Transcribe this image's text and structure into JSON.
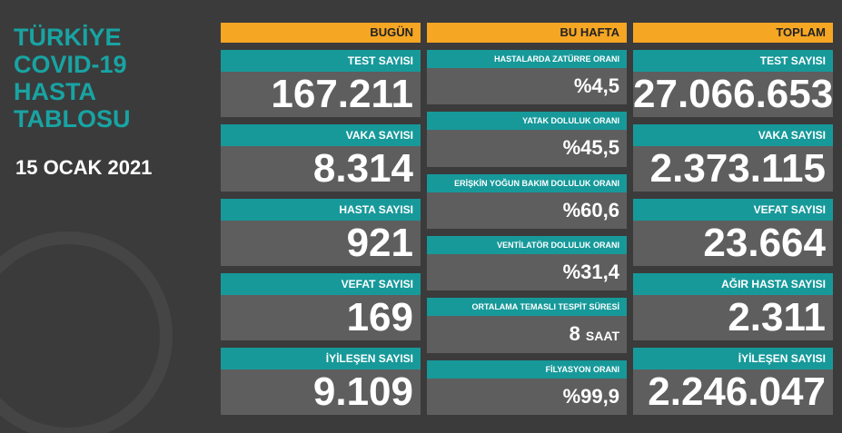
{
  "title_lines": [
    "TÜRKİYE",
    "COVID-19",
    "HASTA",
    "TABLOSU"
  ],
  "date": "15 OCAK 2021",
  "columns": [
    {
      "header": "BUGÜN",
      "items": [
        {
          "label": "TEST SAYISI",
          "value": "167.211"
        },
        {
          "label": "VAKA SAYISI",
          "value": "8.314"
        },
        {
          "label": "HASTA SAYISI",
          "value": "921"
        },
        {
          "label": "VEFAT SAYISI",
          "value": "169"
        },
        {
          "label": "İYİLEŞEN SAYISI",
          "value": "9.109"
        }
      ]
    },
    {
      "header": "BU HAFTA",
      "items": [
        {
          "label": "HASTALARDA ZATÜRRE ORANI",
          "value": "%4,5"
        },
        {
          "label": "YATAK DOLULUK ORANI",
          "value": "%45,5"
        },
        {
          "label": "ERİŞKİN YOĞUN BAKIM DOLULUK ORANI",
          "value": "%60,6"
        },
        {
          "label": "VENTİLATÖR DOLULUK ORANI",
          "value": "%31,4"
        },
        {
          "label": "ORTALAMA TEMASLI TESPİT SÜRESİ",
          "value": "8",
          "unit": "SAAT"
        },
        {
          "label": "FİLYASYON ORANI",
          "value": "%99,9"
        }
      ]
    },
    {
      "header": "TOPLAM",
      "items": [
        {
          "label": "TEST SAYISI",
          "value": "27.066.653"
        },
        {
          "label": "VAKA SAYISI",
          "value": "2.373.115"
        },
        {
          "label": "VEFAT SAYISI",
          "value": "23.664"
        },
        {
          "label": "AĞIR HASTA SAYISI",
          "value": "2.311"
        },
        {
          "label": "İYİLEŞEN SAYISI",
          "value": "2.246.047"
        }
      ]
    }
  ]
}
